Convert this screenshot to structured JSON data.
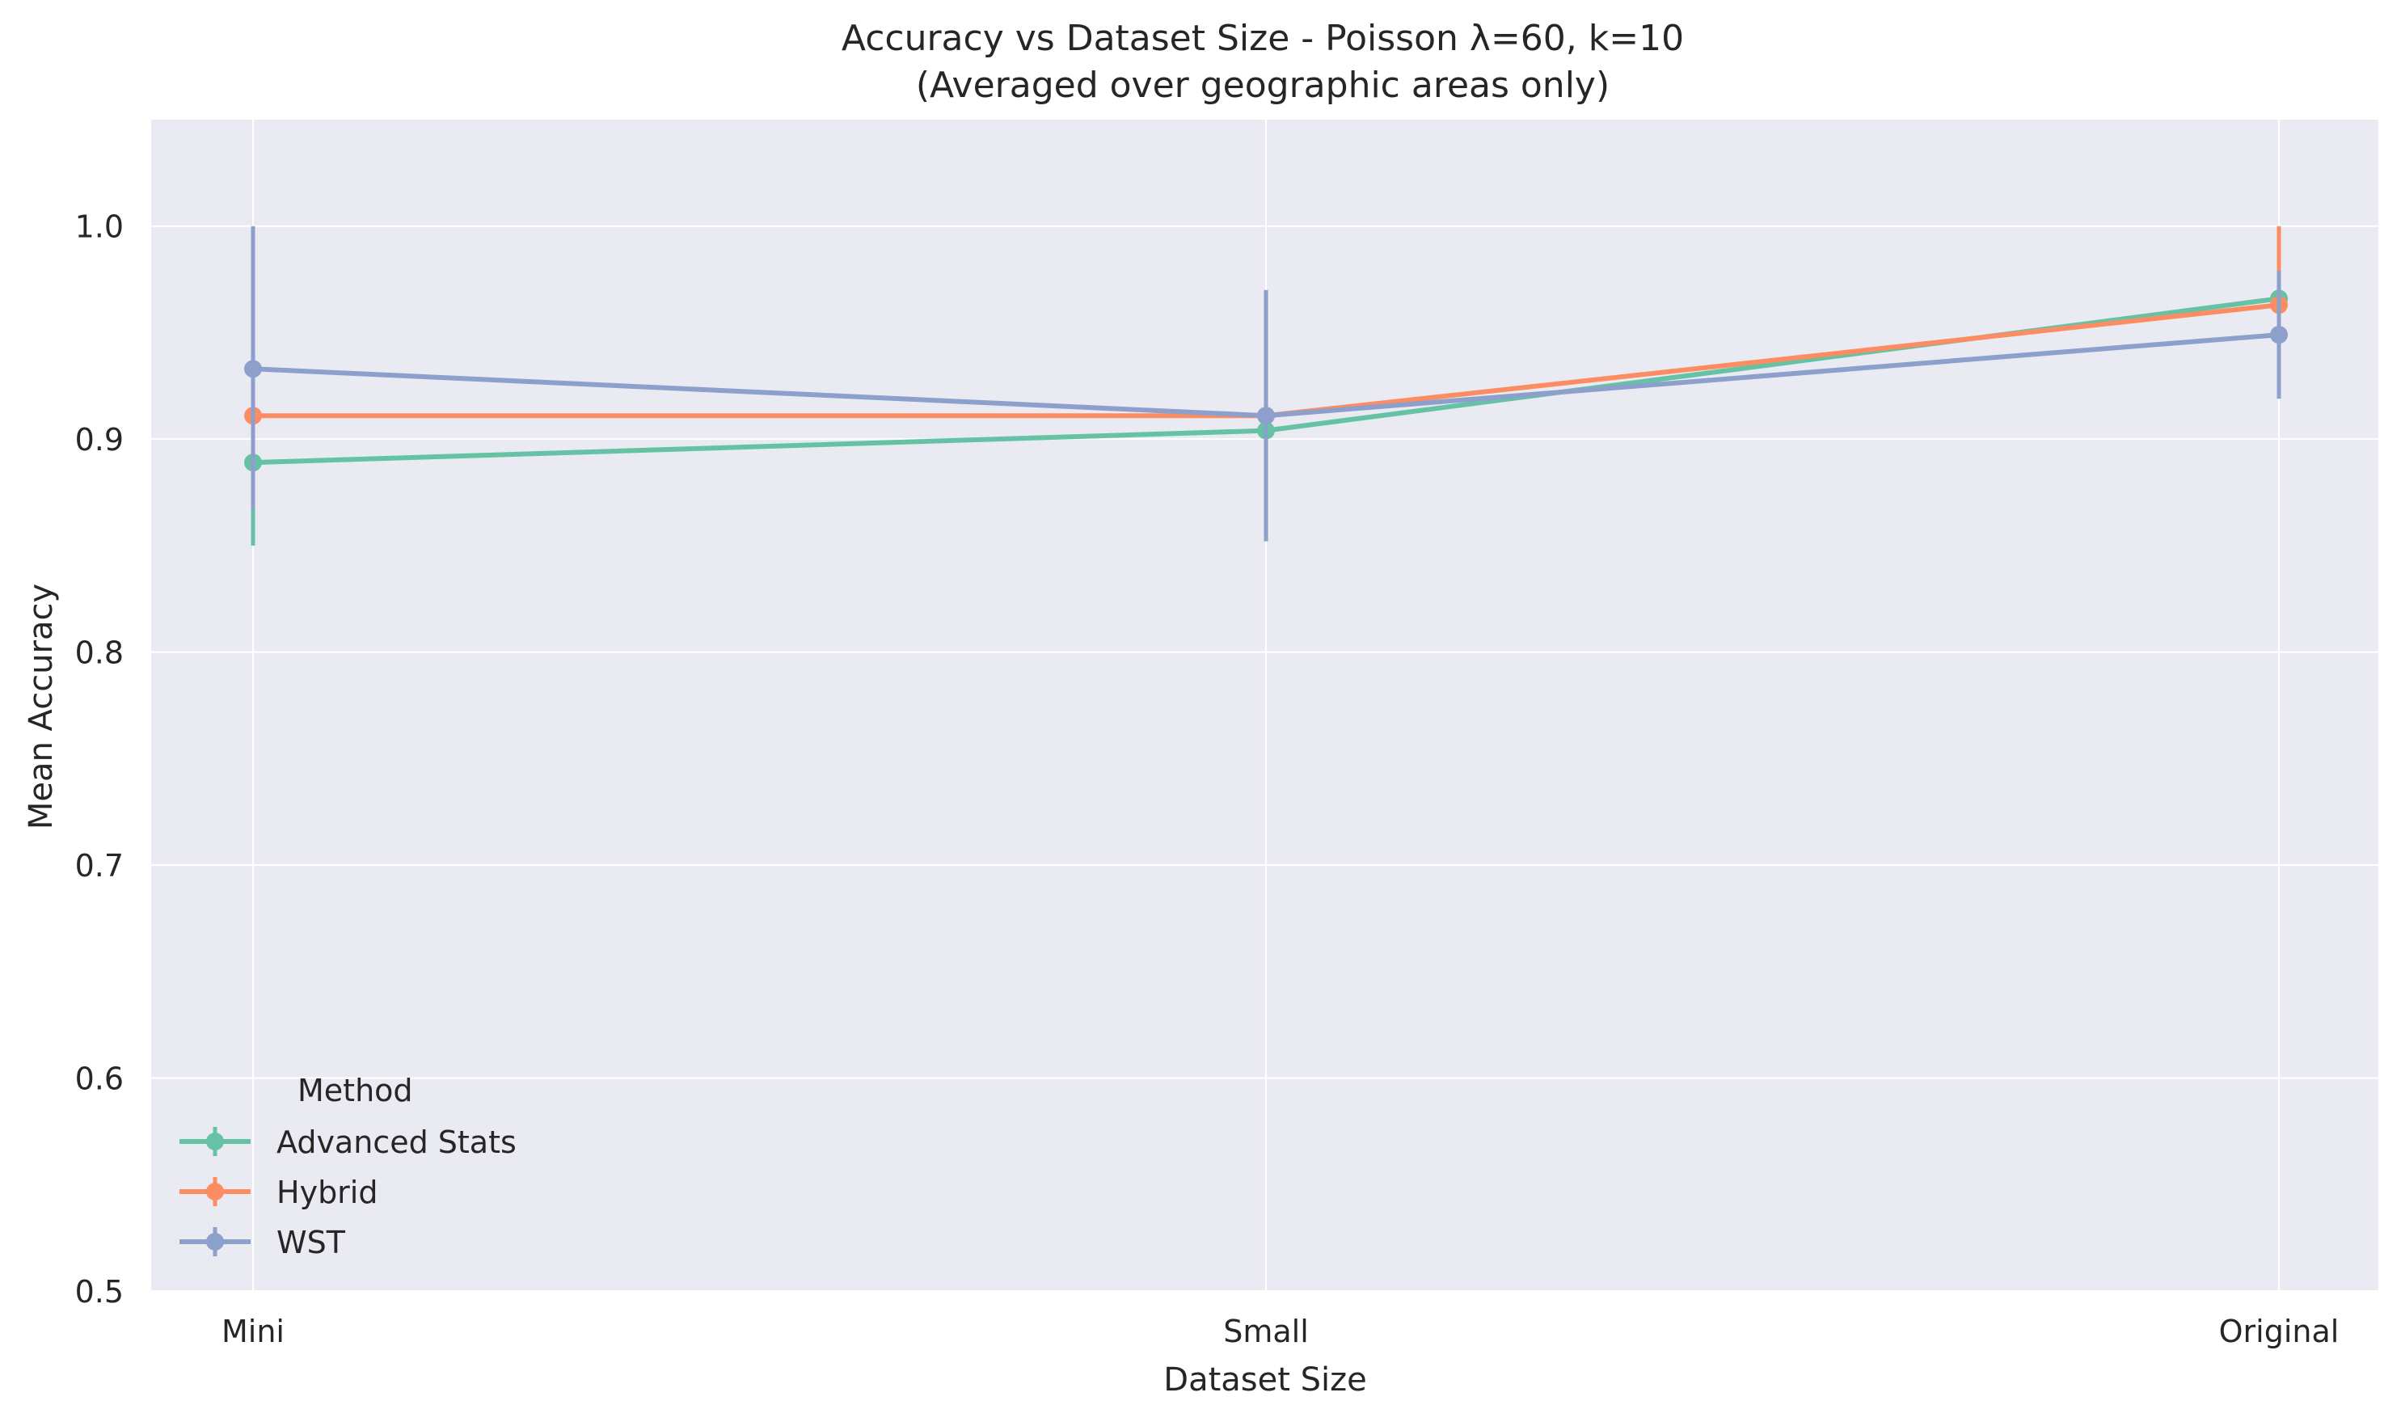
{
  "chart_data": {
    "type": "line",
    "title": "Accuracy vs Dataset Size - Poisson λ=60, k=10",
    "subtitle": "(Averaged over geographic areas only)",
    "xlabel": "Dataset Size",
    "ylabel": "Mean Accuracy",
    "categories": [
      "Mini",
      "Small",
      "Original"
    ],
    "ylim": [
      0.5,
      1.05
    ],
    "yticks": [
      0.5,
      0.6,
      0.7,
      0.8,
      0.9,
      1.0
    ],
    "ytick_labels": [
      "0.5",
      "0.6",
      "0.7",
      "0.8",
      "0.9",
      "1.0"
    ],
    "grid": true,
    "legend": {
      "title": "Method",
      "placement": "lower-left"
    },
    "series": [
      {
        "name": "Advanced Stats",
        "color": "#66c2a5",
        "values": [
          0.889,
          0.904,
          0.966
        ],
        "err_low": [
          0.85,
          0.904,
          0.955
        ],
        "err_high": [
          0.925,
          0.904,
          0.977
        ]
      },
      {
        "name": "Hybrid",
        "color": "#fc8d62",
        "values": [
          0.911,
          0.911,
          0.963
        ],
        "err_low": [
          0.911,
          0.911,
          0.927
        ],
        "err_high": [
          0.911,
          0.911,
          1.0
        ]
      },
      {
        "name": "WST",
        "color": "#8da0cb",
        "values": [
          0.933,
          0.911,
          0.949
        ],
        "err_low": [
          0.867,
          0.852,
          0.919
        ],
        "err_high": [
          1.0,
          0.97,
          0.979
        ]
      }
    ]
  }
}
